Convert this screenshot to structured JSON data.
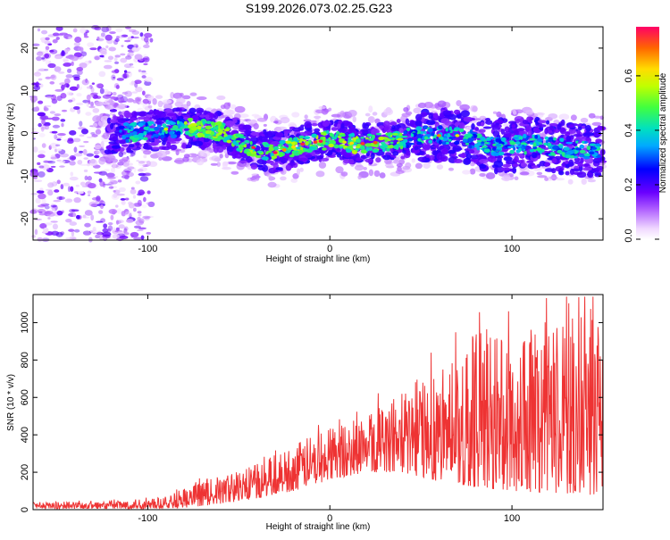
{
  "title": "S199.2026.073.02.25.G23",
  "chart_data": [
    {
      "type": "heatmap",
      "xlabel": "Height of straight line (km)",
      "ylabel": "Frequency (Hz)",
      "xlim": [
        -163,
        150
      ],
      "ylim": [
        -25,
        25
      ],
      "xticks": [
        -100,
        0,
        100
      ],
      "yticks": [
        -20,
        -10,
        0,
        10,
        20
      ],
      "description_band": {
        "note": "energy concentrated in a band near 0 Hz for heights above about -120 km; scattered noise below -120 km",
        "ridge": [
          {
            "x": -120,
            "y": 0.0
          },
          {
            "x": -100,
            "y": 0.5
          },
          {
            "x": -80,
            "y": 1.5
          },
          {
            "x": -60,
            "y": 0.5
          },
          {
            "x": -45,
            "y": -3.0
          },
          {
            "x": -30,
            "y": -4.5
          },
          {
            "x": -15,
            "y": -2.5
          },
          {
            "x": 0,
            "y": -1.5
          },
          {
            "x": 15,
            "y": -2.5
          },
          {
            "x": 30,
            "y": -2.0
          },
          {
            "x": 50,
            "y": -0.5
          },
          {
            "x": 70,
            "y": -0.5
          },
          {
            "x": 90,
            "y": -3.0
          },
          {
            "x": 110,
            "y": -2.5
          },
          {
            "x": 130,
            "y": -3.5
          },
          {
            "x": 150,
            "y": -4.0
          }
        ]
      },
      "colorbar": {
        "label": "Normalized spectral amplitude",
        "range": [
          0.0,
          0.78
        ],
        "ticks": [
          "0.0",
          "0.2",
          "0.4",
          "0.6"
        ],
        "tick_values": [
          0.0,
          0.2,
          0.4,
          0.6
        ]
      }
    },
    {
      "type": "line",
      "xlabel": "Height of straight line (km)",
      "ylabel": "SNR (10 * v/v)",
      "xlim": [
        -163,
        150
      ],
      "ylim": [
        0,
        1150
      ],
      "xticks": [
        -100,
        0,
        100
      ],
      "yticks": [
        0,
        200,
        400,
        600,
        800,
        1000
      ],
      "series": [
        {
          "name": "SNR",
          "color": "#ee3333",
          "envelope": {
            "x": [
              -163,
              -130,
              -100,
              -80,
              -60,
              -40,
              -20,
              0,
              20,
              40,
              60,
              80,
              100,
              120,
              140,
              150
            ],
            "low": [
              5,
              5,
              5,
              10,
              30,
              60,
              100,
              160,
              200,
              200,
              150,
              120,
              100,
              90,
              80,
              80
            ],
            "high": [
              40,
              45,
              60,
              120,
              180,
              250,
              350,
              450,
              520,
              650,
              800,
              950,
              950,
              1000,
              1050,
              1000
            ]
          }
        }
      ]
    }
  ]
}
